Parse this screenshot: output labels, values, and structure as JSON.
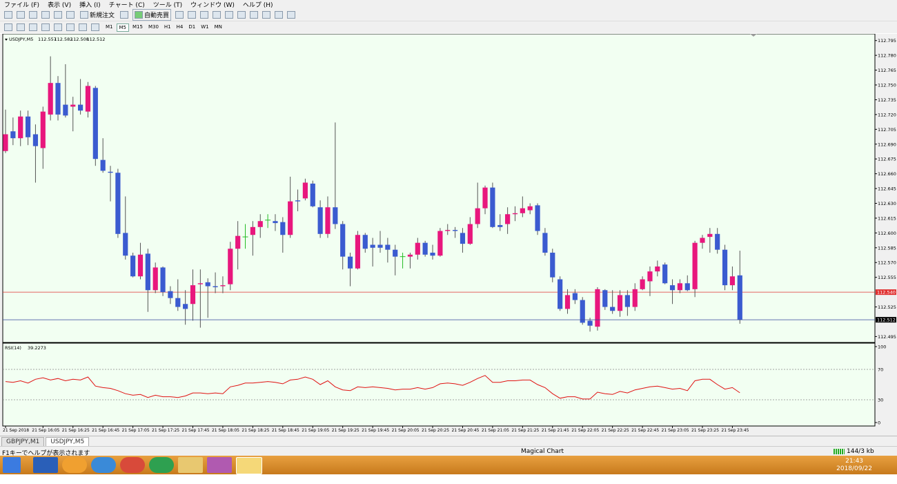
{
  "menu": [
    "ファイル (F)",
    "表示 (V)",
    "挿入 (I)",
    "チャート (C)",
    "ツール (T)",
    "ウィンドウ (W)",
    "ヘルプ (H)"
  ],
  "toolbar": {
    "new_order": "新規注文",
    "auto_trade": "自動売買",
    "timeframes": [
      "M1",
      "M5",
      "M15",
      "M30",
      "H1",
      "H4",
      "D1",
      "W1",
      "MN"
    ]
  },
  "chart_data": [
    {
      "type": "candlestick",
      "title": "USDJPY,M5",
      "open": [
        112.683,
        112.703,
        112.696,
        112.718,
        112.7,
        112.686,
        112.72,
        112.752,
        112.73,
        112.728,
        112.73,
        112.723,
        112.747,
        112.674,
        112.662,
        112.661,
        112.6,
        112.577,
        112.556,
        112.579,
        112.542,
        112.565,
        112.541,
        112.534,
        112.528,
        112.528,
        112.548,
        112.55,
        112.546,
        112.546,
        112.548,
        112.584,
        112.596,
        112.598,
        112.606,
        112.613,
        112.612,
        112.611,
        112.598,
        112.633,
        112.635,
        112.65,
        112.626,
        112.599,
        112.626,
        112.609,
        112.576,
        112.564,
        112.598,
        112.588,
        112.588,
        112.588,
        112.583,
        112.576,
        112.576,
        112.578,
        112.59,
        112.58,
        112.577,
        112.602,
        112.603,
        112.6,
        112.589,
        112.609,
        112.625,
        112.646,
        112.608,
        112.609,
        112.619,
        112.62,
        112.623,
        112.628,
        112.6,
        112.58,
        112.553,
        112.523,
        112.539,
        112.532,
        112.511,
        112.505,
        112.542,
        112.525,
        112.521,
        112.537,
        112.525,
        112.543,
        112.551,
        112.561,
        112.568,
        112.547,
        112.542,
        112.549,
        112.543,
        112.59,
        112.596,
        112.599,
        112.583,
        112.547,
        112.557
      ],
      "high": [
        112.725,
        112.717,
        112.724,
        112.724,
        112.71,
        112.728,
        112.779,
        112.759,
        112.771,
        112.738,
        112.756,
        112.753,
        112.749,
        112.696,
        112.668,
        112.665,
        112.637,
        112.58,
        112.59,
        112.584,
        112.57,
        112.566,
        112.546,
        112.553,
        112.542,
        112.563,
        112.563,
        112.554,
        112.56,
        112.556,
        112.591,
        112.612,
        112.609,
        112.612,
        112.619,
        112.619,
        112.619,
        112.616,
        112.657,
        112.644,
        112.655,
        112.653,
        112.633,
        112.637,
        112.712,
        112.612,
        112.58,
        112.602,
        112.6,
        112.595,
        112.602,
        112.595,
        112.588,
        112.58,
        112.58,
        112.595,
        112.592,
        112.588,
        112.605,
        112.609,
        112.606,
        112.605,
        112.616,
        112.651,
        112.648,
        112.651,
        112.619,
        112.626,
        112.627,
        112.637,
        112.63,
        112.63,
        112.605,
        112.584,
        112.556,
        112.543,
        112.543,
        112.535,
        112.514,
        112.545,
        112.543,
        112.542,
        112.542,
        112.542,
        112.549,
        112.556,
        112.566,
        112.572,
        112.57,
        112.553,
        112.553,
        112.557,
        112.592,
        112.598,
        112.605,
        112.605,
        112.588,
        112.566,
        112.582
      ],
      "low": [
        112.681,
        112.689,
        112.688,
        112.689,
        112.651,
        112.665,
        112.714,
        112.714,
        112.717,
        112.703,
        112.72,
        112.717,
        112.668,
        112.661,
        112.632,
        112.595,
        112.573,
        112.555,
        112.553,
        112.52,
        112.539,
        112.536,
        112.528,
        112.521,
        112.507,
        112.511,
        112.504,
        112.514,
        112.539,
        112.539,
        112.542,
        112.563,
        112.584,
        112.577,
        112.595,
        112.605,
        112.602,
        112.58,
        112.595,
        112.622,
        112.633,
        112.626,
        112.595,
        112.595,
        112.604,
        112.563,
        112.546,
        112.563,
        112.58,
        112.566,
        112.58,
        112.57,
        112.557,
        112.564,
        112.564,
        112.573,
        112.576,
        112.573,
        112.576,
        112.598,
        112.595,
        112.58,
        112.588,
        112.605,
        112.619,
        112.605,
        112.602,
        112.599,
        112.612,
        112.616,
        112.619,
        112.598,
        112.577,
        112.55,
        112.521,
        112.518,
        112.528,
        112.507,
        112.5,
        112.501,
        112.522,
        112.518,
        112.515,
        112.516,
        112.521,
        112.542,
        112.536,
        112.556,
        112.548,
        112.528,
        112.539,
        112.541,
        112.535,
        112.584,
        112.58,
        112.579,
        112.542,
        112.542,
        112.508
      ],
      "close": [
        112.7,
        112.696,
        112.718,
        112.697,
        112.688,
        112.723,
        112.752,
        112.72,
        112.719,
        112.73,
        112.724,
        112.749,
        112.675,
        112.663,
        112.661,
        112.599,
        112.577,
        112.556,
        112.578,
        112.542,
        112.565,
        112.54,
        112.534,
        112.525,
        112.523,
        112.547,
        112.549,
        112.546,
        112.545,
        112.547,
        112.584,
        112.597,
        112.596,
        112.606,
        112.612,
        112.613,
        112.61,
        112.598,
        112.632,
        112.632,
        112.651,
        112.627,
        112.599,
        112.626,
        112.609,
        112.576,
        112.564,
        112.598,
        112.584,
        112.585,
        112.585,
        112.583,
        112.576,
        112.576,
        112.578,
        112.59,
        112.578,
        112.577,
        112.602,
        112.603,
        112.602,
        112.589,
        112.609,
        112.625,
        112.646,
        112.606,
        112.606,
        112.619,
        112.62,
        112.625,
        112.627,
        112.602,
        112.58,
        112.555,
        112.523,
        112.537,
        112.532,
        112.509,
        112.506,
        112.543,
        112.525,
        112.521,
        112.537,
        112.525,
        112.543,
        112.553,
        112.561,
        112.566,
        112.549,
        112.542,
        112.549,
        112.542,
        112.59,
        112.595,
        112.599,
        112.583,
        112.547,
        112.556,
        112.512
      ],
      "ylim": [
        112.489,
        112.799
      ],
      "yticks": [
        112.795,
        {
          "value": 112.78,
          "label": "112.780"
        },
        112.765,
        {
          "value": 112.75,
          "label": "112.750"
        },
        112.735,
        {
          "value": 112.72,
          "label": "112.720"
        },
        112.705,
        {
          "value": 112.69,
          "label": "112.690"
        },
        112.675,
        {
          "value": 112.66,
          "label": "112.660"
        },
        112.645,
        {
          "value": 112.63,
          "label": "112.630"
        },
        112.615,
        {
          "value": 112.6,
          "label": "112.600"
        },
        112.585,
        {
          "value": 112.57,
          "label": "112.570"
        },
        112.555,
        112.525,
        112.495
      ],
      "x_labels": [
        "21 Sep 2018",
        "21 Sep 16:05",
        "21 Sep 16:25",
        "21 Sep 16:45",
        "21 Sep 17:05",
        "21 Sep 17:25",
        "21 Sep 17:45",
        "21 Sep 18:05",
        "21 Sep 18:25",
        "21 Sep 18:45",
        "21 Sep 19:05",
        "21 Sep 19:25",
        "21 Sep 19:45",
        "21 Sep 20:05",
        "21 Sep 20:25",
        "21 Sep 20:45",
        "21 Sep 21:05",
        "21 Sep 21:25",
        "21 Sep 21:45",
        "21 Sep 22:05",
        "21 Sep 22:25",
        "21 Sep 22:45",
        "21 Sep 23:05",
        "21 Sep 23:25",
        "21 Sep 23:45"
      ],
      "up_color": "#e8177d",
      "down_color": "#3b5bd0",
      "doji_color": "#22bb22",
      "wick_color": "#555555",
      "hline": {
        "value": 112.54,
        "label": "112.540",
        "color": "#e03030"
      },
      "bid_color": "#34469a"
    },
    {
      "type": "line",
      "title": "RSI(14)",
      "values": [
        54,
        53,
        55,
        52,
        57,
        59,
        56,
        58,
        55,
        57,
        56,
        60,
        48,
        46,
        45,
        42,
        38,
        36,
        37,
        33,
        36,
        34,
        34,
        33,
        35,
        39,
        39,
        38,
        39,
        38,
        47,
        49,
        52,
        52,
        53,
        54,
        53,
        51,
        56,
        57,
        60,
        57,
        50,
        55,
        47,
        43,
        42,
        47,
        46,
        47,
        46,
        45,
        43,
        44,
        44,
        46,
        44,
        46,
        51,
        52,
        51,
        49,
        53,
        58,
        62,
        53,
        53,
        55,
        55,
        56,
        56,
        50,
        46,
        38,
        32,
        34,
        34,
        31,
        31,
        40,
        38,
        37,
        41,
        39,
        43,
        45,
        47,
        48,
        46,
        44,
        45,
        42,
        55,
        57,
        57,
        50,
        44,
        46,
        39.2273
      ],
      "ylim": [
        0,
        100
      ],
      "yticks": [
        0,
        30,
        70,
        100
      ],
      "color": "#e01010"
    }
  ],
  "tabs": [
    "GBPJPY,M1",
    "USDJPY,M5"
  ],
  "status": {
    "help": "F1キーでヘルプが表示されます",
    "profile": "Magical Chart",
    "traffic": "144/3 kb"
  },
  "taskbar": {
    "time": "21:43",
    "date": "2018/09/22"
  }
}
